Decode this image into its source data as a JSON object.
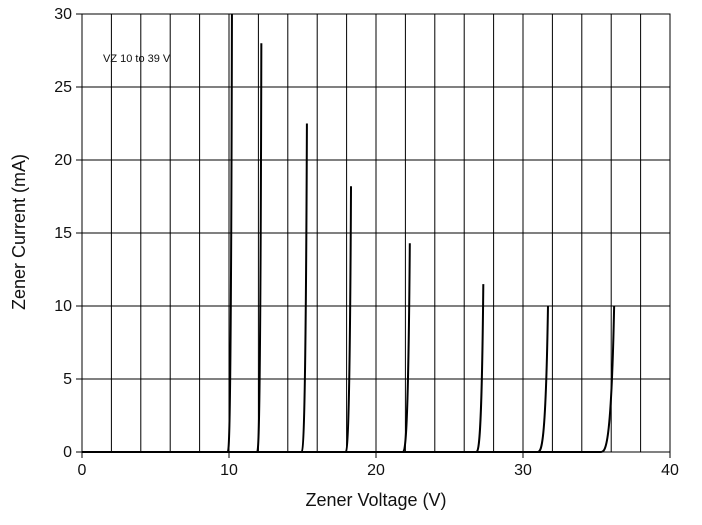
{
  "chart_data": {
    "type": "line",
    "title": "",
    "xlabel": "Zener Voltage (V)",
    "ylabel": "Zener Current (mA)",
    "xlim": [
      0,
      40
    ],
    "ylim": [
      0,
      30
    ],
    "x_ticks": [
      0,
      10,
      20,
      30,
      40
    ],
    "y_ticks": [
      0,
      5,
      10,
      15,
      20,
      25,
      30
    ],
    "x_tick_labels": [
      "0",
      "10",
      "20",
      "30",
      "40"
    ],
    "y_tick_labels": [
      "0",
      "5",
      "10",
      "15",
      "20",
      "25",
      "30"
    ],
    "x_minor_grid_step": 2,
    "y_major_grid_step": 5,
    "grid": true,
    "legend": "none",
    "annotation": "VZ 10 to 39 V",
    "line_color": "#000000",
    "series": [
      {
        "values": [
          {
            "x": 0,
            "y": 0
          },
          {
            "x": 9.9,
            "y": 0
          },
          {
            "x": 10.2,
            "y": 30
          }
        ]
      },
      {
        "values": [
          {
            "x": 0,
            "y": 0
          },
          {
            "x": 11.9,
            "y": 0
          },
          {
            "x": 12.2,
            "y": 28
          }
        ]
      },
      {
        "values": [
          {
            "x": 0,
            "y": 0
          },
          {
            "x": 14.9,
            "y": 0
          },
          {
            "x": 15.3,
            "y": 22.5
          }
        ]
      },
      {
        "values": [
          {
            "x": 0,
            "y": 0
          },
          {
            "x": 17.9,
            "y": 0
          },
          {
            "x": 18.3,
            "y": 18.2
          }
        ]
      },
      {
        "values": [
          {
            "x": 0,
            "y": 0
          },
          {
            "x": 21.8,
            "y": 0
          },
          {
            "x": 22.3,
            "y": 14.3
          }
        ]
      },
      {
        "values": [
          {
            "x": 0,
            "y": 0
          },
          {
            "x": 26.8,
            "y": 0
          },
          {
            "x": 27.3,
            "y": 11.5
          }
        ]
      },
      {
        "values": [
          {
            "x": 0,
            "y": 0
          },
          {
            "x": 31.0,
            "y": 0
          },
          {
            "x": 31.7,
            "y": 10
          }
        ]
      },
      {
        "values": [
          {
            "x": 0,
            "y": 0
          },
          {
            "x": 35.3,
            "y": 0
          },
          {
            "x": 36.2,
            "y": 10
          }
        ]
      }
    ]
  }
}
